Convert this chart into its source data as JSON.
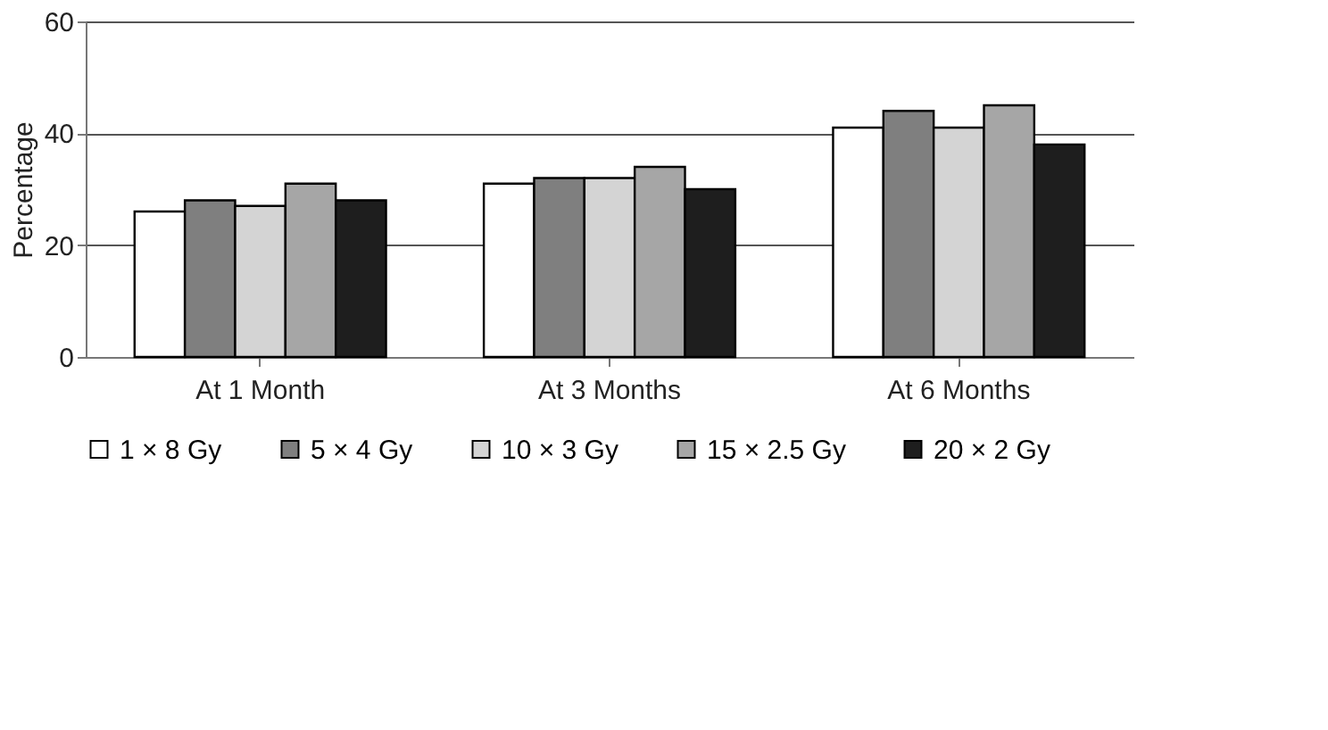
{
  "chart_data": {
    "type": "bar",
    "ylabel": "Percentage",
    "categories": [
      "At 1 Month",
      "At 3 Months",
      "At 6 Months"
    ],
    "series": [
      {
        "name": "1 × 8 Gy",
        "color": "#ffffff",
        "values": [
          26,
          31,
          41
        ]
      },
      {
        "name": "5 × 4 Gy",
        "color": "#7f7f7f",
        "values": [
          28,
          32,
          44
        ]
      },
      {
        "name": "10 × 3 Gy",
        "color": "#d4d4d4",
        "values": [
          27,
          32,
          41
        ]
      },
      {
        "name": "15 × 2.5 Gy",
        "color": "#a6a6a6",
        "values": [
          31,
          34,
          45
        ]
      },
      {
        "name": "20 × 2 Gy",
        "color": "#1e1e1e",
        "values": [
          28,
          30,
          38
        ]
      }
    ],
    "ylim": [
      0,
      60
    ],
    "yticks": [
      0,
      20,
      40,
      60
    ],
    "grid": "y",
    "legend": "bottom"
  }
}
